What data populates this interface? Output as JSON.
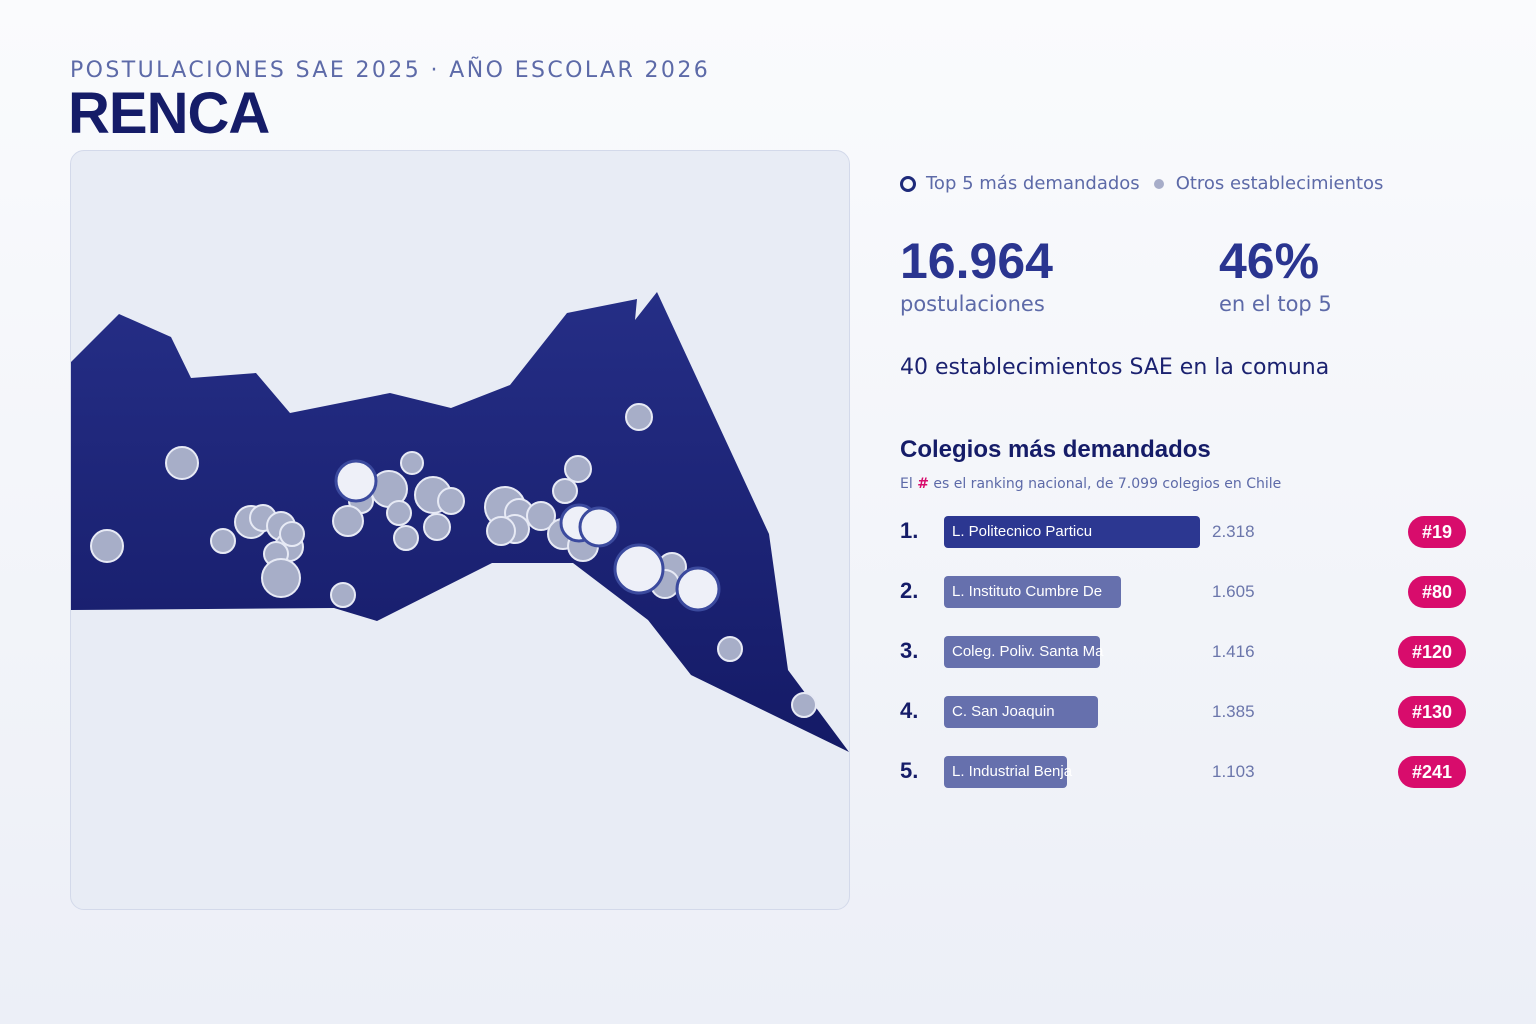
{
  "header": {
    "supertitle": "POSTULACIONES SAE 2025 · AÑO ESCOLAR 2026",
    "title": "RENCA"
  },
  "legend": {
    "top5_label": "Top 5 más demandados",
    "others_label": "Otros establecimientos"
  },
  "stats": {
    "applications_value": "16.964",
    "applications_label": "postulaciones",
    "top5_share_value": "46%",
    "top5_share_label": "en el top 5",
    "establishments_text": "40 establecimientos SAE en la comuna"
  },
  "ranking": {
    "title": "Colegios más demandados",
    "note_prefix": "El ",
    "note_hash": "#",
    "note_suffix": " es el ranking nacional, de 7.099 colegios en Chile",
    "items": [
      {
        "rank": "1.",
        "name": "L. Politecnico Particu",
        "value": "2.318",
        "national_rank": "#19",
        "share": 1.0
      },
      {
        "rank": "2.",
        "name": "L. Instituto Cumbre De",
        "value": "1.605",
        "national_rank": "#80",
        "share": 0.69
      },
      {
        "rank": "3.",
        "name": "Coleg. Poliv. Santa Ma",
        "value": "1.416",
        "national_rank": "#120",
        "share": 0.61
      },
      {
        "rank": "4.",
        "name": "C. San Joaquin",
        "value": "1.385",
        "national_rank": "#130",
        "share": 0.6
      },
      {
        "rank": "5.",
        "name": "L. Industrial Benjamin",
        "value": "1.103",
        "national_rank": "#241",
        "share": 0.48
      }
    ]
  },
  "colors": {
    "commune_fill": "#1e2779",
    "school_fill": "#a7aec8",
    "top5_fill": "#eef0f8",
    "bar_first": "#2c3791",
    "bar_other": "#6670ad",
    "badge": "#d80c6c"
  }
}
